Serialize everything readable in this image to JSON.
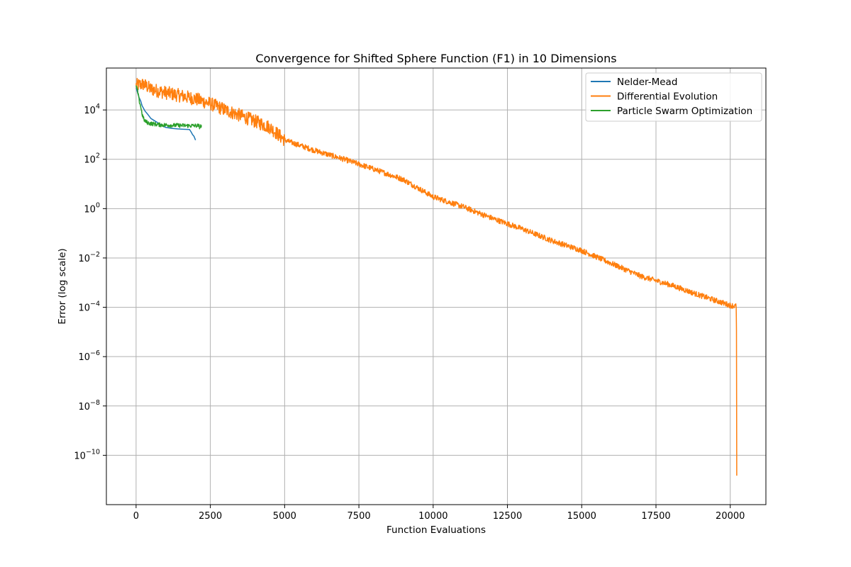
{
  "chart_data": {
    "type": "line",
    "title": "Convergence for Shifted Sphere Function (F1) in 10 Dimensions",
    "xlabel": "Function Evaluations",
    "ylabel": "Error (log scale)",
    "xlim": [
      -1000,
      21200
    ],
    "ylim": [
      1e-12,
      500000
    ],
    "yscale": "log",
    "grid": true,
    "legend_position": "top-right",
    "x_ticks": [
      0,
      2500,
      5000,
      7500,
      10000,
      12500,
      15000,
      17500,
      20000
    ],
    "x_tick_labels": [
      "0",
      "2500",
      "5000",
      "7500",
      "10000",
      "12500",
      "15000",
      "17500",
      "20000"
    ],
    "y_ticks": [
      {
        "value": 10000,
        "base": "10",
        "exp": "4"
      },
      {
        "value": 100,
        "base": "10",
        "exp": "2"
      },
      {
        "value": 1,
        "base": "10",
        "exp": "0"
      },
      {
        "value": 0.01,
        "base": "10",
        "exp": "−2"
      },
      {
        "value": 0.0001,
        "base": "10",
        "exp": "−4"
      },
      {
        "value": 1e-06,
        "base": "10",
        "exp": "−6"
      },
      {
        "value": 1e-08,
        "base": "10",
        "exp": "−8"
      },
      {
        "value": 1e-10,
        "base": "10",
        "exp": "−10"
      }
    ],
    "series": [
      {
        "name": "Nelder-Mead",
        "color": "#1f77b4",
        "noise": 0.0,
        "points": [
          [
            0,
            80000
          ],
          [
            50,
            50000
          ],
          [
            100,
            32000
          ],
          [
            150,
            24000
          ],
          [
            200,
            15000
          ],
          [
            300,
            9000
          ],
          [
            400,
            6500
          ],
          [
            500,
            4500
          ],
          [
            600,
            3800
          ],
          [
            700,
            3200
          ],
          [
            800,
            2700
          ],
          [
            900,
            2200
          ],
          [
            1000,
            1950
          ],
          [
            1200,
            1800
          ],
          [
            1400,
            1700
          ],
          [
            1600,
            1650
          ],
          [
            1800,
            1600
          ],
          [
            1850,
            1300
          ],
          [
            1900,
            1000
          ],
          [
            1950,
            850
          ],
          [
            2000,
            600
          ]
        ]
      },
      {
        "name": "Differential Evolution",
        "color": "#ff7f0e",
        "noise": 1,
        "points": [
          [
            0,
            100000
          ],
          [
            250,
            110000
          ],
          [
            500,
            70000
          ],
          [
            1000,
            50000
          ],
          [
            1500,
            38000
          ],
          [
            2000,
            28000
          ],
          [
            2500,
            18000
          ],
          [
            3000,
            10000
          ],
          [
            3500,
            6000
          ],
          [
            4000,
            3500
          ],
          [
            4500,
            2000
          ],
          [
            5000,
            600
          ],
          [
            6000,
            230
          ],
          [
            7000,
            100
          ],
          [
            8000,
            40
          ],
          [
            9000,
            15
          ],
          [
            10000,
            3
          ],
          [
            11000,
            1.2
          ],
          [
            12000,
            0.4
          ],
          [
            13000,
            0.15
          ],
          [
            14000,
            0.05
          ],
          [
            15000,
            0.02
          ],
          [
            16000,
            0.006
          ],
          [
            17000,
            0.0018
          ],
          [
            18000,
            0.0008
          ],
          [
            19000,
            0.0003
          ],
          [
            20000,
            0.00012
          ],
          [
            20200,
            0.00011
          ],
          [
            20210,
            1.2e-05
          ],
          [
            20215,
            2e-08
          ],
          [
            20220,
            1.5e-11
          ]
        ]
      },
      {
        "name": "Particle Swarm Optimization",
        "color": "#2ca02c",
        "noise": 0.3,
        "points": [
          [
            0,
            90000
          ],
          [
            50,
            60000
          ],
          [
            100,
            25000
          ],
          [
            150,
            15000
          ],
          [
            200,
            7000
          ],
          [
            250,
            4500
          ],
          [
            300,
            3500
          ],
          [
            400,
            3000
          ],
          [
            500,
            2800
          ],
          [
            600,
            2700
          ],
          [
            700,
            2600
          ],
          [
            800,
            2500
          ],
          [
            1000,
            2450
          ],
          [
            1200,
            2400
          ],
          [
            1500,
            2350
          ],
          [
            1800,
            2300
          ],
          [
            2100,
            2300
          ],
          [
            2150,
            2000
          ],
          [
            2200,
            2400
          ]
        ]
      }
    ]
  }
}
